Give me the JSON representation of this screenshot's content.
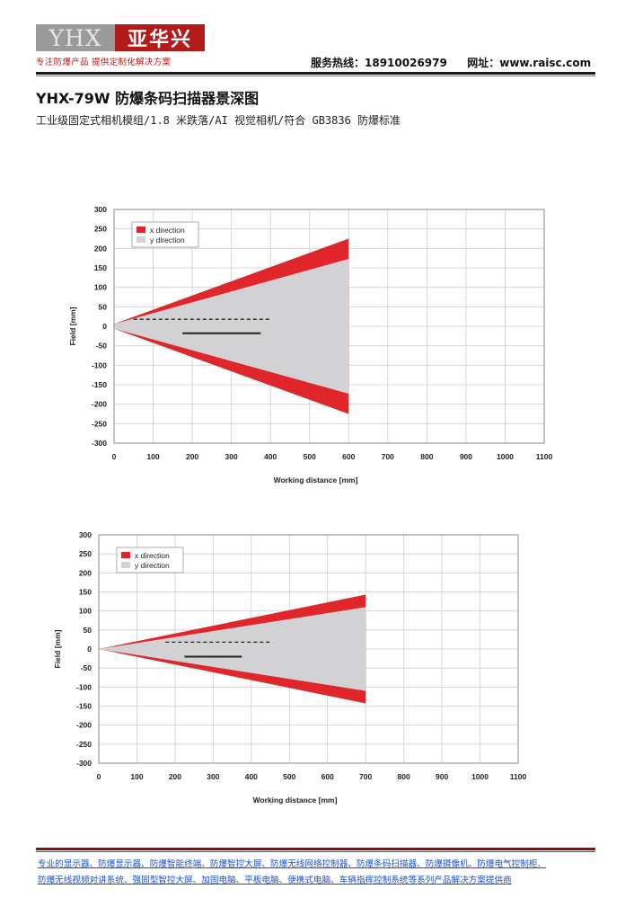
{
  "header": {
    "logo_letters": "YHX",
    "logo_name": "亚华兴",
    "logo_slogan": "专注防爆产品 提供定制化解决方案",
    "hotline": "服务热线：18910026979",
    "website": "网址：www.raisc.com"
  },
  "doc": {
    "title": "YHX-79W 防爆条码扫描器景深图",
    "subtitle": "工业级固定式相机模组/1.8 米跌落/AI 视觉相机/符合 GB3836 防爆标准"
  },
  "chart_data": [
    {
      "type": "area",
      "xlabel": "Working distance [mm]",
      "ylabel": "Field [mm]",
      "xlim": [
        0,
        1100
      ],
      "ylim": [
        -300,
        300
      ],
      "x_ticks": [
        "0",
        "100",
        "200",
        "300",
        "400",
        "500",
        "600",
        "700",
        "800",
        "900",
        "1000",
        "1100"
      ],
      "y_ticks": [
        "300",
        "250",
        "200",
        "150",
        "100",
        "50",
        "0",
        "-50",
        "-100",
        "-150",
        "-200",
        "-250",
        "-300"
      ],
      "grid": true,
      "legend_position": "top-left",
      "colors": {
        "x": "#e0262b",
        "y": "#d2d2d4"
      },
      "series": [
        {
          "name": "x direction",
          "x": [
            0,
            600
          ],
          "upper": [
            6,
            225
          ],
          "lower": [
            -6,
            -225
          ]
        },
        {
          "name": "y direction",
          "x": [
            0,
            600
          ],
          "upper": [
            6,
            173
          ],
          "lower": [
            -6,
            -173
          ]
        }
      ],
      "markers": [
        {
          "style": "dashed",
          "x": [
            50,
            400
          ],
          "y": 18
        },
        {
          "style": "solid",
          "x": [
            175,
            375
          ],
          "y": -18
        }
      ]
    },
    {
      "type": "area",
      "xlabel": "Working distance [mm]",
      "ylabel": "Field [mm]",
      "xlim": [
        0,
        1100
      ],
      "ylim": [
        -300,
        300
      ],
      "x_ticks": [
        "0",
        "100",
        "200",
        "300",
        "400",
        "500",
        "600",
        "700",
        "800",
        "900",
        "1000",
        "1100"
      ],
      "y_ticks": [
        "300",
        "250",
        "200",
        "150",
        "100",
        "50",
        "0",
        "-50",
        "-100",
        "-150",
        "-200",
        "-250",
        "-300"
      ],
      "grid": true,
      "legend_position": "top-left",
      "colors": {
        "x": "#e0262b",
        "y": "#d2d2d4"
      },
      "series": [
        {
          "name": "x direction",
          "x": [
            0,
            700
          ],
          "upper": [
            0,
            143
          ],
          "lower": [
            0,
            -143
          ]
        },
        {
          "name": "y direction",
          "x": [
            0,
            700
          ],
          "upper": [
            0,
            110
          ],
          "lower": [
            0,
            -110
          ]
        }
      ],
      "markers": [
        {
          "style": "dashed",
          "x": [
            175,
            450
          ],
          "y": 18
        },
        {
          "style": "solid",
          "x": [
            225,
            375
          ],
          "y": -20
        }
      ]
    }
  ],
  "footer": {
    "line1": "专业的显示器、防爆显示器、防爆智能终端、防爆智控大屏、防爆无线网络控制器、防爆条码扫描器、防爆摄像机、防爆电气控制柜、",
    "line2": "防爆无线视频对讲系统、强固型智控大屏、加固电脑、平板电脑、便携式电脑、车辆指挥控制系统等系列产品解决方案提供商"
  }
}
